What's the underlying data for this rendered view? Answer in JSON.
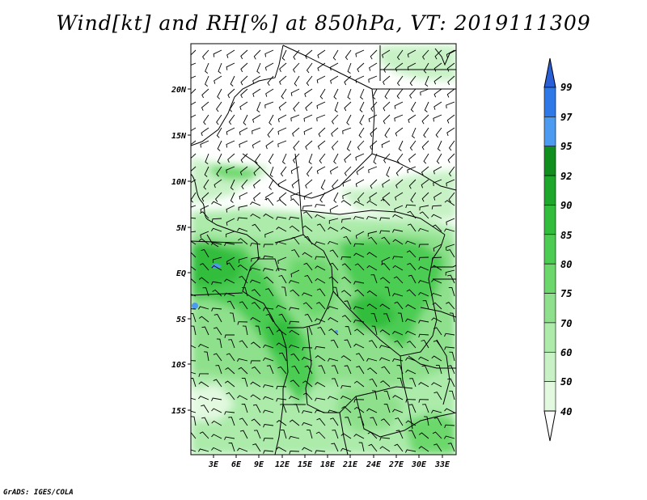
{
  "title": "Wind[kt] and RH[%] at 850hPa, VT: 2019111309",
  "footer": "GrADS: IGES/COLA",
  "map": {
    "lat_labels": [
      "20N",
      "15N",
      "10N",
      "5N",
      "EQ",
      "5S",
      "10S",
      "15S"
    ],
    "lon_labels": [
      "3E",
      "6E",
      "9E",
      "12E",
      "15E",
      "18E",
      "21E",
      "24E",
      "27E",
      "30E",
      "33E"
    ]
  },
  "colorbar": {
    "levels": [
      "99",
      "97",
      "95",
      "92",
      "90",
      "85",
      "80",
      "75",
      "70",
      "60",
      "50",
      "40"
    ],
    "colors": {
      "above_99": "#2a5fd6",
      "97_99": "#2f78e8",
      "95_97": "#4d9bf0",
      "92_95": "#118f1e",
      "90_92": "#1ea82b",
      "85_90": "#33bd3d",
      "80_85": "#4ccc52",
      "75_80": "#6cd86c",
      "70_75": "#8ee08c",
      "60_70": "#acebaa",
      "50_60": "#c8f2c6",
      "40_50": "#e2f9e0",
      "below_40": "#ffffff"
    }
  }
}
